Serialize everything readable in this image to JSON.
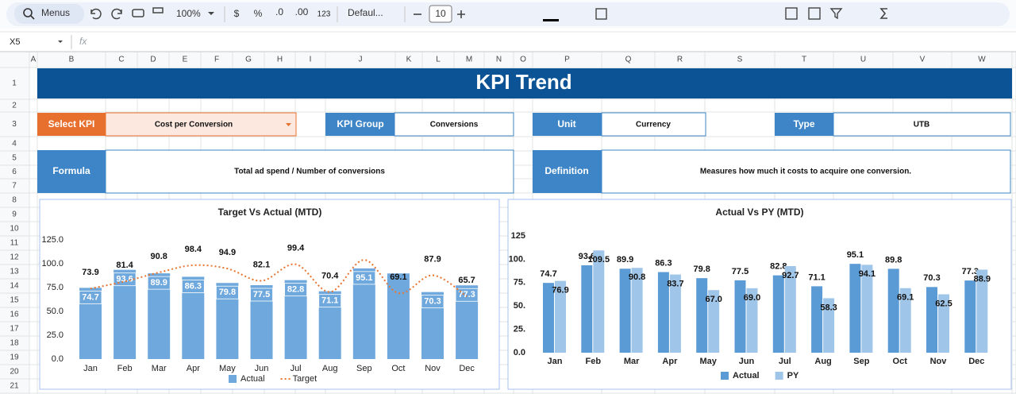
{
  "toolbar": {
    "search": "Menus",
    "zoom": "100%",
    "currency": "$",
    "percent": "%",
    "decrease_decimals": ".0",
    "increase_decimals": ".00",
    "number_format": "123",
    "font": "Defaul...",
    "font_size": "10"
  },
  "formula_bar": {
    "name_box": "X5",
    "fx": "fx"
  },
  "columns": [
    "A",
    "B",
    "C",
    "D",
    "E",
    "F",
    "G",
    "H",
    "I",
    "J",
    "K",
    "L",
    "M",
    "N",
    "O",
    "P",
    "Q",
    "R",
    "S",
    "T",
    "U",
    "V",
    "W"
  ],
  "rows": [
    1,
    2,
    3,
    4,
    5,
    6,
    7,
    8,
    9,
    10,
    11,
    12,
    13,
    14,
    15,
    16,
    17,
    18,
    19,
    20,
    21
  ],
  "sheet": {
    "title": "KPI Trend",
    "select_kpi": {
      "label": "Select KPI",
      "value": "Cost per Conversion"
    },
    "kpi_group": {
      "label": "KPI Group",
      "value": "Conversions"
    },
    "unit": {
      "label": "Unit",
      "value": "Currency"
    },
    "type": {
      "label": "Type",
      "value": "UTB"
    },
    "formula": {
      "label": "Formula",
      "value": "Total ad spend / Number of conversions"
    },
    "definition": {
      "label": "Definition",
      "value": "Measures how much it costs to acquire one conversion."
    }
  },
  "chart_data": [
    {
      "type": "combo",
      "title": "Target Vs Actual (MTD)",
      "categories": [
        "Jan",
        "Feb",
        "Mar",
        "Apr",
        "May",
        "Jun",
        "Jul",
        "Aug",
        "Sep",
        "Oct",
        "Nov",
        "Dec"
      ],
      "series": [
        {
          "name": "Actual",
          "type": "bar",
          "color": "#6fa8dc",
          "values": [
            74.7,
            93.6,
            89.9,
            86.3,
            79.8,
            77.5,
            82.8,
            71.1,
            95.1,
            89.8,
            70.3,
            77.3
          ],
          "value_labels": [
            "74.7",
            "93.6",
            "89.9",
            "86.3",
            "79.8",
            "77.5",
            "82.8",
            "71.1",
            "95.1",
            null,
            "70.3",
            "77.3"
          ]
        },
        {
          "name": "Target",
          "type": "line",
          "color": "#e8742f",
          "values": [
            73.9,
            81.4,
            90.8,
            98.4,
            94.9,
            82.1,
            99.4,
            70.4,
            104,
            69.1,
            87.9,
            65.7
          ],
          "value_labels": [
            "73.9",
            "81.4",
            "90.8",
            "98.4",
            "94.9",
            "82.1",
            "99.4",
            "70.4",
            null,
            "69.1",
            "87.9",
            "65.7"
          ]
        }
      ],
      "ylim": [
        0,
        125
      ],
      "yticks": [
        {
          "value": 0,
          "label": "0.0"
        },
        {
          "value": 25,
          "label": "25.0"
        },
        {
          "value": 50,
          "label": "50.0"
        },
        {
          "value": 75,
          "label": "75.0"
        },
        {
          "value": 100,
          "label": "100.0"
        },
        {
          "value": 125,
          "label": "125.0"
        }
      ],
      "grid": false,
      "legend": "bottom"
    },
    {
      "type": "bar",
      "title": "Actual Vs PY (MTD)",
      "categories": [
        "Jan",
        "Feb",
        "Mar",
        "Apr",
        "May",
        "Jun",
        "Jul",
        "Aug",
        "Sep",
        "Oct",
        "Nov",
        "Dec"
      ],
      "series": [
        {
          "name": "Actual",
          "color": "#5b9bd5",
          "values": [
            74.7,
            93.6,
            89.9,
            86.3,
            79.8,
            77.5,
            82.8,
            71.1,
            95.1,
            89.8,
            70.3,
            77.3
          ]
        },
        {
          "name": "PY",
          "color": "#9fc5e8",
          "values": [
            76.9,
            109.5,
            90.8,
            83.7,
            67.0,
            69.0,
            92.7,
            58.3,
            94.1,
            69.1,
            62.5,
            88.9
          ],
          "value_labels": [
            "76.9",
            "109.5",
            "90.8",
            "83.7",
            "67.0",
            "69.0",
            "92.7",
            "58.3",
            "94.1",
            "69.1",
            "62.5",
            "88.9"
          ]
        }
      ],
      "ylim": [
        0,
        125
      ],
      "yticks": [
        {
          "value": 0,
          "label": "0.0"
        },
        {
          "value": 25,
          "label": "25."
        },
        {
          "value": 50,
          "label": "50."
        },
        {
          "value": 75,
          "label": "75."
        },
        {
          "value": 100,
          "label": "100."
        },
        125
      ],
      "grid": false,
      "legend": "bottom"
    }
  ]
}
